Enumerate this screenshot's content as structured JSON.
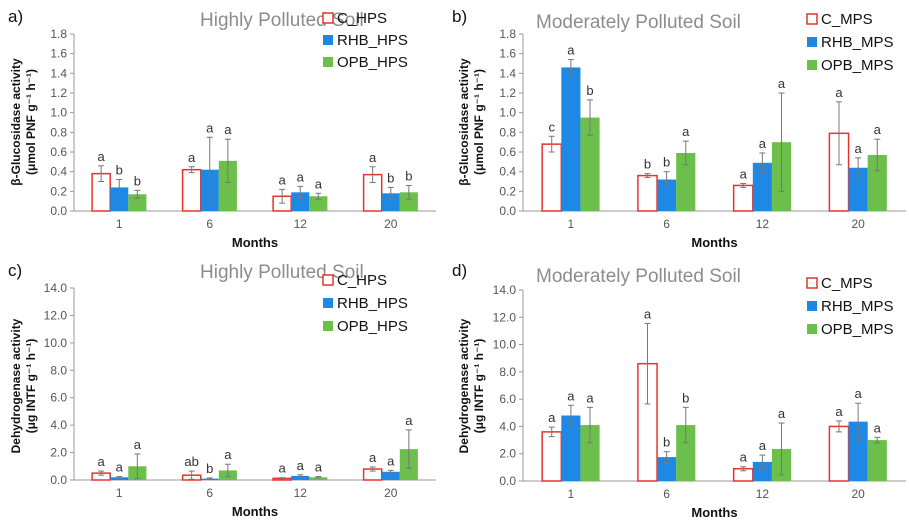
{
  "chart_data": [
    {
      "panel_label": "a)",
      "type": "bar",
      "title": "Highly Polluted Soil",
      "xlabel": "Months",
      "ylabel_line1": "β-Glucosidase activity",
      "ylabel_line2": "(μmol PNF g⁻¹ h⁻¹)",
      "ylim": [
        0,
        1.8
      ],
      "yticks": [
        "0.0",
        "0.2",
        "0.4",
        "0.6",
        "0.8",
        "1.0",
        "1.2",
        "1.4",
        "1.6",
        "1.8"
      ],
      "categories": [
        "1",
        "6",
        "12",
        "20"
      ],
      "series": [
        {
          "name": "C_HPS",
          "color": "#e8332b",
          "fill": "#ffffff",
          "values": [
            0.38,
            0.42,
            0.15,
            0.37
          ],
          "errors": [
            0.08,
            0.03,
            0.07,
            0.08
          ],
          "letters": [
            "a",
            "a",
            "a",
            "a"
          ]
        },
        {
          "name": "RHB_HPS",
          "color": "#1e88e5",
          "fill": "#1e88e5",
          "values": [
            0.24,
            0.42,
            0.19,
            0.18
          ],
          "errors": [
            0.08,
            0.33,
            0.06,
            0.06
          ],
          "letters": [
            "b",
            "a",
            "a",
            "b"
          ]
        },
        {
          "name": "OPB_HPS",
          "color": "#6cbf4b",
          "fill": "#6cbf4b",
          "values": [
            0.17,
            0.51,
            0.15,
            0.19
          ],
          "errors": [
            0.04,
            0.22,
            0.03,
            0.07
          ],
          "letters": [
            "b",
            "a",
            "a",
            "b"
          ]
        }
      ],
      "legend_position": "top-right"
    },
    {
      "panel_label": "b)",
      "type": "bar",
      "title": "Moderately Polluted Soil",
      "xlabel": "Months",
      "ylabel_line1": "β-Glucosidase activity",
      "ylabel_line2": "(μmol PNF g⁻¹ h⁻¹)",
      "ylim": [
        0,
        1.8
      ],
      "yticks": [
        "0.0",
        "0.2",
        "0.4",
        "0.6",
        "0.8",
        "1.0",
        "1.2",
        "1.4",
        "1.6",
        "1.8"
      ],
      "categories": [
        "1",
        "6",
        "12",
        "20"
      ],
      "series": [
        {
          "name": "C_MPS",
          "color": "#e8332b",
          "fill": "#ffffff",
          "values": [
            0.68,
            0.36,
            0.26,
            0.79
          ],
          "errors": [
            0.08,
            0.02,
            0.02,
            0.32
          ],
          "letters": [
            "c",
            "b",
            "a",
            "a"
          ]
        },
        {
          "name": "RHB_MPS",
          "color": "#1e88e5",
          "fill": "#1e88e5",
          "values": [
            1.46,
            0.32,
            0.49,
            0.44
          ],
          "errors": [
            0.08,
            0.08,
            0.1,
            0.1
          ],
          "letters": [
            "a",
            "b",
            "a",
            "a"
          ]
        },
        {
          "name": "OPB_MPS",
          "color": "#6cbf4b",
          "fill": "#6cbf4b",
          "values": [
            0.95,
            0.59,
            0.7,
            0.57
          ],
          "errors": [
            0.18,
            0.12,
            0.5,
            0.16
          ],
          "letters": [
            "b",
            "a",
            "a",
            "a"
          ]
        }
      ],
      "legend_position": "top-right"
    },
    {
      "panel_label": "c)",
      "type": "bar",
      "title": "Highly Polluted Soil",
      "xlabel": "Months",
      "ylabel_line1": "Dehydrogenase activity",
      "ylabel_line2": "(μg INTF g⁻¹ h⁻¹)",
      "ylim": [
        0,
        14
      ],
      "yticks": [
        "0.0",
        "2.0",
        "4.0",
        "6.0",
        "8.0",
        "10.0",
        "12.0",
        "14.0"
      ],
      "categories": [
        "1",
        "6",
        "12",
        "20"
      ],
      "series": [
        {
          "name": "C_HPS",
          "color": "#e8332b",
          "fill": "#ffffff",
          "values": [
            0.5,
            0.35,
            0.12,
            0.8
          ],
          "errors": [
            0.15,
            0.3,
            0.05,
            0.15
          ],
          "letters": [
            "a",
            "ab",
            "a",
            "a"
          ]
        },
        {
          "name": "RHB_HPS",
          "color": "#1e88e5",
          "fill": "#1e88e5",
          "values": [
            0.2,
            0.1,
            0.3,
            0.6
          ],
          "errors": [
            0.05,
            0.05,
            0.08,
            0.1
          ],
          "letters": [
            "a",
            "b",
            "a",
            "a"
          ]
        },
        {
          "name": "OPB_HPS",
          "color": "#6cbf4b",
          "fill": "#6cbf4b",
          "values": [
            1.0,
            0.7,
            0.2,
            2.25
          ],
          "errors": [
            0.9,
            0.45,
            0.05,
            1.4
          ],
          "letters": [
            "a",
            "a",
            "a",
            "a"
          ]
        }
      ],
      "legend_position": "top-right"
    },
    {
      "panel_label": "d)",
      "type": "bar",
      "title": "Moderately Polluted Soil",
      "xlabel": "Months",
      "ylabel_line1": "Dehydrogenase activity",
      "ylabel_line2": "(μg INTF g⁻¹ h⁻¹)",
      "ylim": [
        0,
        14
      ],
      "yticks": [
        "0.0",
        "2.0",
        "4.0",
        "6.0",
        "8.0",
        "10.0",
        "12.0",
        "14.0"
      ],
      "categories": [
        "1",
        "6",
        "12",
        "20"
      ],
      "series": [
        {
          "name": "C_MPS",
          "color": "#e8332b",
          "fill": "#ffffff",
          "values": [
            3.6,
            8.6,
            0.9,
            4.0
          ],
          "errors": [
            0.35,
            2.95,
            0.15,
            0.4
          ],
          "letters": [
            "a",
            "a",
            "a",
            "a"
          ]
        },
        {
          "name": "RHB_MPS",
          "color": "#1e88e5",
          "fill": "#1e88e5",
          "values": [
            4.8,
            1.75,
            1.4,
            4.35
          ],
          "errors": [
            0.75,
            0.4,
            0.5,
            1.35
          ],
          "letters": [
            "a",
            "b",
            "a",
            "a"
          ]
        },
        {
          "name": "OPB_MPS",
          "color": "#6cbf4b",
          "fill": "#6cbf4b",
          "values": [
            4.1,
            4.1,
            2.35,
            3.0
          ],
          "errors": [
            1.3,
            1.3,
            1.9,
            0.2
          ],
          "letters": [
            "a",
            "b",
            "a",
            "a"
          ]
        }
      ],
      "legend_position": "top-right"
    }
  ]
}
